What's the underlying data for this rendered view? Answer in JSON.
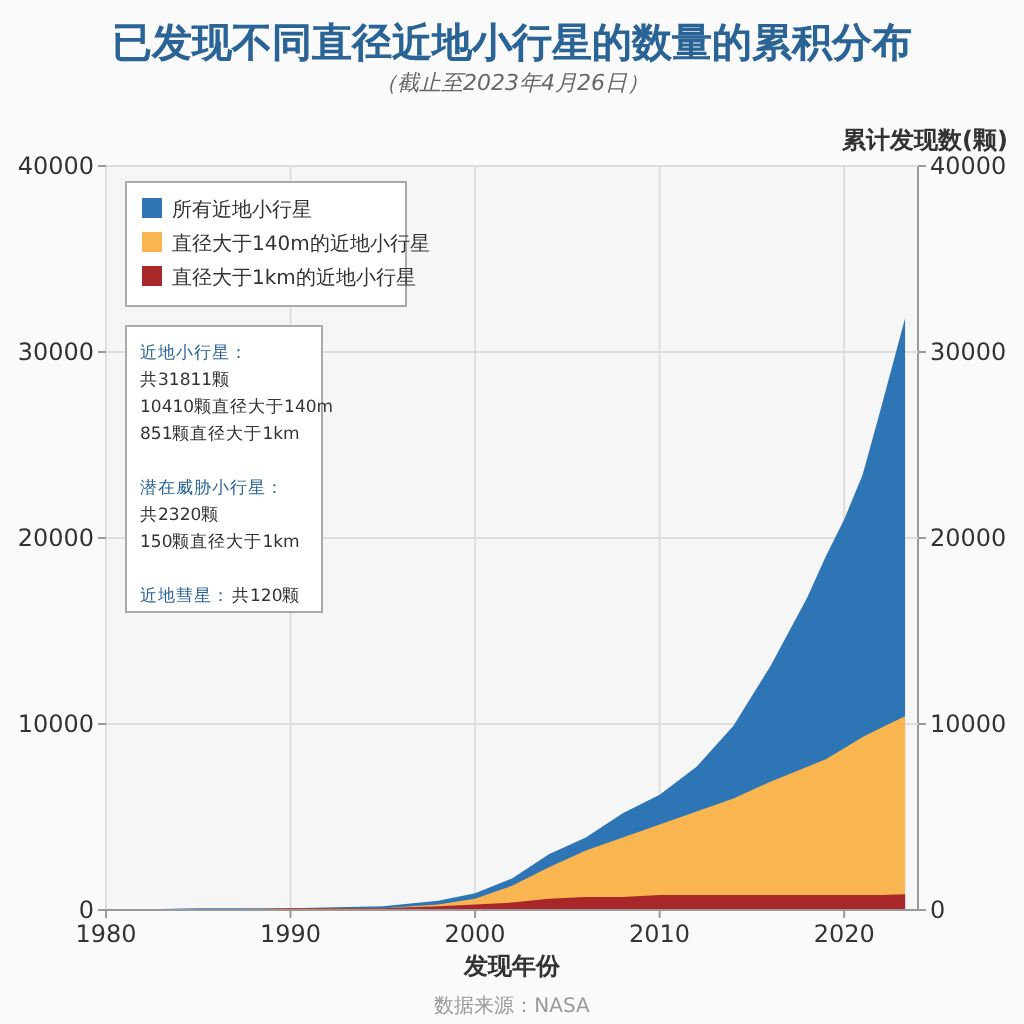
{
  "chart_data": {
    "type": "area",
    "title": "已发现不同直径近地小行星的数量的累积分布",
    "subtitle": "（截止至2023年4月26日）",
    "xlabel": "发现年份",
    "y2label": "累计发现数(颗)",
    "x": [
      1980,
      1985,
      1990,
      1995,
      1998,
      2000,
      2002,
      2004,
      2006,
      2008,
      2010,
      2012,
      2014,
      2016,
      2018,
      2019,
      2020,
      2021,
      2022,
      2023.3
    ],
    "series": [
      {
        "name": "所有近地小行星",
        "color": "#2e75b6",
        "values": [
          0,
          100,
          100,
          200,
          500,
          900,
          1700,
          3000,
          3900,
          5200,
          6200,
          7700,
          9900,
          13100,
          16800,
          19000,
          21000,
          23400,
          27000,
          31811
        ]
      },
      {
        "name": "直径大于140m的近地小行星",
        "color": "#f9b550",
        "values": [
          0,
          0,
          100,
          100,
          300,
          600,
          1300,
          2300,
          3200,
          3900,
          4600,
          5300,
          6000,
          6900,
          7700,
          8100,
          8700,
          9300,
          9800,
          10410
        ]
      },
      {
        "name": "直径大于1km的近地小行星",
        "color": "#a8282a",
        "values": [
          0,
          0,
          100,
          100,
          200,
          300,
          400,
          600,
          700,
          700,
          800,
          800,
          800,
          800,
          800,
          800,
          800,
          800,
          800,
          851
        ]
      }
    ],
    "xlim": [
      1980,
      2024
    ],
    "xticks": [
      1980,
      1990,
      2000,
      2010,
      2020
    ],
    "ylim": [
      0,
      40000
    ],
    "yticks": [
      0,
      10000,
      20000,
      30000,
      40000
    ],
    "y2lim": [
      0,
      40000
    ],
    "y2ticks": [
      0,
      10000,
      20000,
      30000,
      40000
    ],
    "grid": true,
    "legend": "top left",
    "annotations": [
      "近地小行星：",
      "共31811颗",
      "10410颗直径大于140m",
      "851颗直径大于1km",
      "潜在威胁小行星：",
      "共2320颗",
      "150颗直径大于1km",
      "近地彗星：",
      "共120颗",
      "数据来源：NASA"
    ]
  }
}
